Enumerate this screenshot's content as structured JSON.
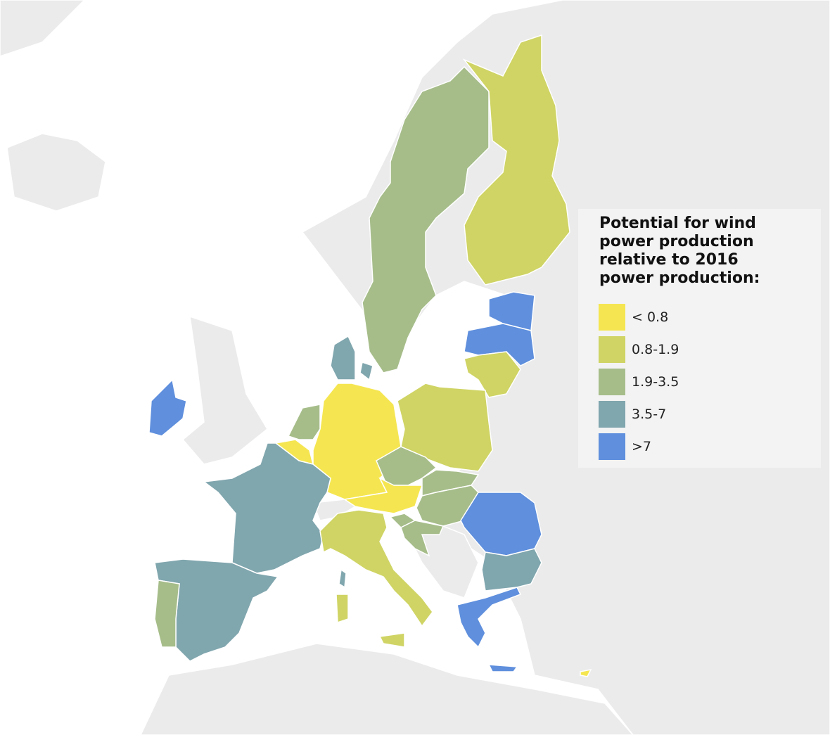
{
  "legend": {
    "title": "Potential for wind power production relative to 2016 power production:",
    "items": [
      {
        "label": "< 0.8",
        "color": "#f5e651"
      },
      {
        "label": "0.8-1.9",
        "color": "#cfd464"
      },
      {
        "label": "1.9-3.5",
        "color": "#a6bd8a"
      },
      {
        "label": "3.5-7",
        "color": "#80a6ae"
      },
      {
        "label": ">7",
        "color": "#5f8fdd"
      }
    ]
  }
}
